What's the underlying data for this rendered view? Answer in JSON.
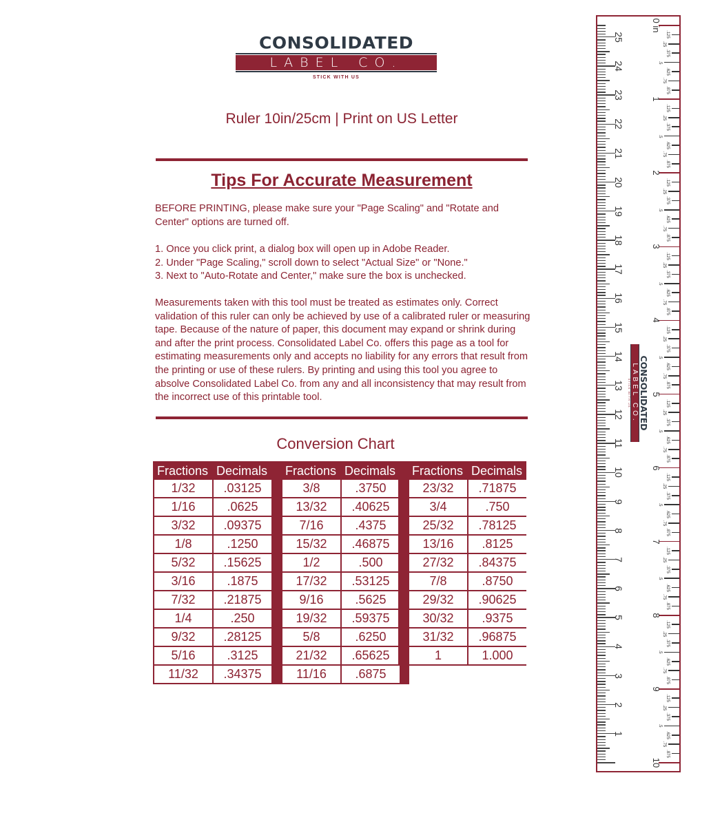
{
  "logo": {
    "line1": "CONSOLIDATED",
    "line2_letters": [
      "L",
      "A",
      "B",
      "E",
      "L"
    ],
    "line2b_letters": [
      "C",
      "O",
      "."
    ],
    "tagline": "STICK WITH US"
  },
  "title": "Ruler 10in/25cm | Print on US Letter",
  "tips": {
    "heading": "Tips For Accurate Measurement",
    "intro": "BEFORE PRINTING, please make sure your \"Page Scaling\" and \"Rotate and Center\" options are turned off.",
    "steps": [
      "1. Once you click print, a dialog box will open up in Adobe Reader.",
      "2. Under \"Page Scaling,\" scroll down to select \"Actual Size\" or \"None.\"",
      "3. Next to \"Auto-Rotate and Center,\" make sure the box is unchecked."
    ],
    "disclaimer": "Measurements taken with this tool must be treated as estimates only. Correct validation of this ruler can only be achieved by use of a calibrated ruler or measuring tape. Because of the nature of paper, this document may expand or shrink during and after the print process. Consolidated Label Co. offers this page as a tool for estimating measurements only and accepts no liability for any errors that result from the printing or use of these rulers. By printing and using this tool you agree to absolve Consolidated Label Co. from any and all inconsistency that may result from the incorrect use of this printable tool."
  },
  "conversion": {
    "title": "Conversion Chart",
    "headers": [
      "Fractions",
      "Decimals"
    ],
    "groups": [
      [
        [
          "1/32",
          ".03125"
        ],
        [
          "1/16",
          ".0625"
        ],
        [
          "3/32",
          ".09375"
        ],
        [
          "1/8",
          ".1250"
        ],
        [
          "5/32",
          ".15625"
        ],
        [
          "3/16",
          ".1875"
        ],
        [
          "7/32",
          ".21875"
        ],
        [
          "1/4",
          ".250"
        ],
        [
          "9/32",
          ".28125"
        ],
        [
          "5/16",
          ".3125"
        ],
        [
          "11/32",
          ".34375"
        ]
      ],
      [
        [
          "3/8",
          ".3750"
        ],
        [
          "13/32",
          ".40625"
        ],
        [
          "7/16",
          ".4375"
        ],
        [
          "15/32",
          ".46875"
        ],
        [
          "1/2",
          ".500"
        ],
        [
          "17/32",
          ".53125"
        ],
        [
          "9/16",
          ".5625"
        ],
        [
          "19/32",
          ".59375"
        ],
        [
          "5/8",
          ".6250"
        ],
        [
          "21/32",
          ".65625"
        ],
        [
          "11/16",
          ".6875"
        ]
      ],
      [
        [
          "23/32",
          ".71875"
        ],
        [
          "3/4",
          ".750"
        ],
        [
          "25/32",
          ".78125"
        ],
        [
          "13/16",
          ".8125"
        ],
        [
          "27/32",
          ".84375"
        ],
        [
          "7/8",
          ".8750"
        ],
        [
          "29/32",
          ".90625"
        ],
        [
          "30/32",
          ".9375"
        ],
        [
          "31/32",
          ".96875"
        ],
        [
          "1",
          "1.000"
        ]
      ]
    ]
  },
  "ruler": {
    "inches": 10,
    "centimeters": 25,
    "inch_zero_label": "0 in",
    "fraction_labels": [
      ".125",
      ".25",
      ".375",
      ".5",
      ".625",
      ".75",
      ".875"
    ],
    "logo": {
      "line1": "CONSOLIDATED",
      "line2": "LABEL CO.",
      "tagline": "STICK WITH US"
    }
  },
  "colors": {
    "brand": "#8e2434",
    "dark": "#2f3a45"
  }
}
